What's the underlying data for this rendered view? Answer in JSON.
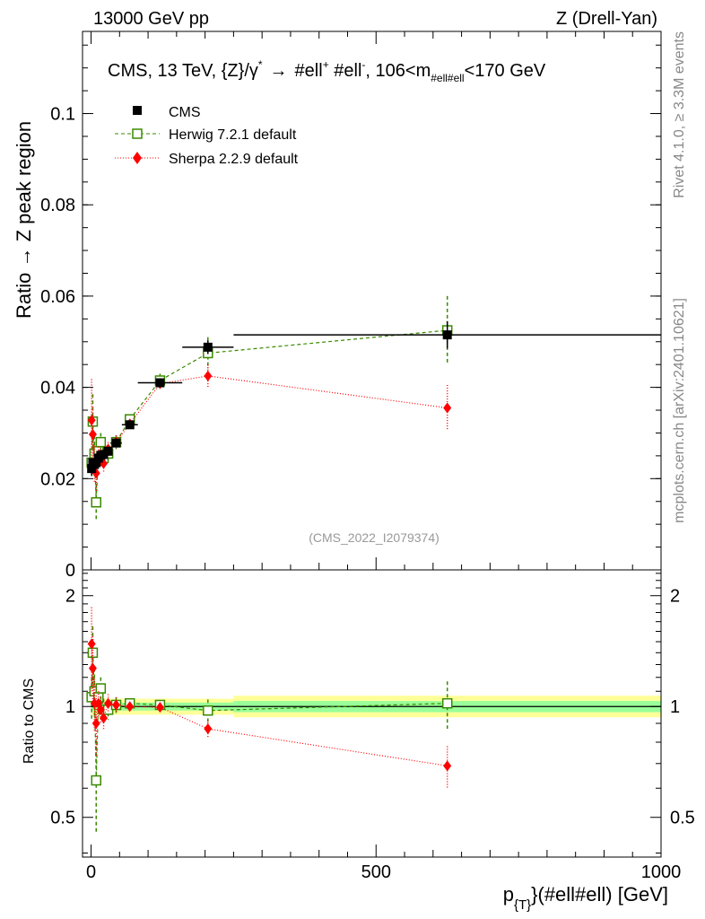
{
  "header": {
    "left": "13000 GeV pp",
    "right": "Z (Drell-Yan)"
  },
  "side_labels": {
    "rivet": "Rivet 4.1.0, ≥ 3.3M events",
    "mcplots": "mcplots.cern.ch [arXiv:2401.10621]"
  },
  "chart_data": [
    {
      "type": "scatter",
      "panel": "main",
      "title_parts": {
        "pre": "CMS, 13 TeV, {Z}/γ",
        "star": "*",
        "arrow": "→",
        "mid1": "#ell",
        "plus": "+",
        "mid2": " #ell",
        "minus": "-",
        "range": ", 106<m",
        "sub": "#ell#ell",
        "end": "<170 GeV"
      },
      "ylabel": "Ratio → Z peak region",
      "xlabel_parts": {
        "p": "p",
        "sub": "{T}",
        "rest": "}(#ell#ell) [GeV]"
      },
      "watermark": "(CMS_2022_I2079374)",
      "xlim": [
        -15,
        1000
      ],
      "ylim": [
        0,
        0.118
      ],
      "yticks": [
        0,
        0.02,
        0.04,
        0.06,
        0.08,
        0.1
      ],
      "ytick_labels": [
        "0",
        "0.02",
        "0.04",
        "0.06",
        "0.08",
        "0.1"
      ],
      "series": [
        {
          "name": "CMS",
          "color": "#000000",
          "marker": "square-filled",
          "x": [
            1,
            3,
            6,
            9,
            13,
            17,
            22,
            30,
            44,
            68,
            121,
            205,
            625
          ],
          "y": [
            0.0222,
            0.0235,
            0.0231,
            0.0235,
            0.0245,
            0.0251,
            0.0253,
            0.026,
            0.0278,
            0.0318,
            0.041,
            0.0488,
            0.0515
          ],
          "xerr": [
            1,
            1,
            2,
            1,
            3,
            1,
            4,
            4,
            10,
            14,
            39,
            45,
            375
          ],
          "yerr": [
            0.0015,
            0.001,
            0.001,
            0.001,
            0.001,
            0.001,
            0.001,
            0.001,
            0.001,
            0.0008,
            0.001,
            0.0015,
            0.003
          ]
        },
        {
          "name": "Herwig 7.2.1 default",
          "color": "#3a8a00",
          "marker": "square-open",
          "line": "dashed",
          "x": [
            1,
            3,
            6,
            9,
            13,
            17,
            22,
            30,
            44,
            68,
            121,
            205,
            625
          ],
          "y": [
            0.0235,
            0.0325,
            0.0255,
            0.0148,
            0.026,
            0.028,
            0.0245,
            0.0255,
            0.028,
            0.033,
            0.0415,
            0.0475,
            0.0525
          ],
          "yerr": [
            0.003,
            0.006,
            0.004,
            0.004,
            0.002,
            0.002,
            0.002,
            0.0015,
            0.0015,
            0.001,
            0.0015,
            0.0035,
            0.0075
          ]
        },
        {
          "name": "Sherpa 2.2.9 default",
          "color": "#ff0000",
          "marker": "diamond-filled",
          "line": "dotted",
          "x": [
            1,
            3,
            6,
            9,
            13,
            17,
            22,
            30,
            44,
            68,
            121,
            205,
            625
          ],
          "y": [
            0.0328,
            0.0297,
            0.0232,
            0.0212,
            0.025,
            0.0245,
            0.0233,
            0.0265,
            0.028,
            0.032,
            0.0408,
            0.0425,
            0.0355
          ],
          "yerr": [
            0.009,
            0.006,
            0.004,
            0.004,
            0.002,
            0.002,
            0.002,
            0.0015,
            0.0015,
            0.001,
            0.0012,
            0.0025,
            0.005
          ]
        }
      ]
    },
    {
      "type": "scatter",
      "panel": "ratio",
      "ylabel": "Ratio to CMS",
      "xlim": [
        -15,
        1000
      ],
      "ylim": [
        0.39,
        2.35
      ],
      "log_scale": true,
      "yticks": [
        0.5,
        1,
        2
      ],
      "ytick_labels": [
        "0.5",
        "1",
        "2"
      ],
      "xticks": [
        0,
        500,
        1000
      ],
      "xtick_labels": [
        "0",
        "500",
        "1000"
      ],
      "bands": [
        {
          "x0": 0,
          "x1": 250,
          "y0": 0.95,
          "y1": 1.05,
          "color": "#ffff99"
        },
        {
          "x0": 250,
          "x1": 1000,
          "y0": 0.935,
          "y1": 1.07,
          "color": "#ffff99"
        },
        {
          "x0": 0,
          "x1": 250,
          "y0": 0.975,
          "y1": 1.025,
          "color": "#99ff99"
        },
        {
          "x0": 250,
          "x1": 1000,
          "y0": 0.965,
          "y1": 1.035,
          "color": "#99ff99"
        }
      ],
      "series": [
        {
          "name": "Herwig 7.2.1 default",
          "color": "#3a8a00",
          "marker": "square-open",
          "line": "dashed",
          "x": [
            1,
            3,
            6,
            9,
            13,
            17,
            22,
            30,
            44,
            68,
            121,
            205,
            625
          ],
          "y": [
            1.06,
            1.4,
            1.1,
            0.63,
            1.06,
            1.12,
            0.98,
            0.98,
            1.01,
            1.02,
            1.01,
            0.975,
            1.02
          ],
          "yerr": [
            0.14,
            0.25,
            0.17,
            0.18,
            0.08,
            0.08,
            0.07,
            0.06,
            0.05,
            0.03,
            0.03,
            0.07,
            0.15
          ]
        },
        {
          "name": "Sherpa 2.2.9 default",
          "color": "#ff0000",
          "marker": "diamond-filled",
          "line": "dotted",
          "x": [
            1,
            3,
            6,
            9,
            13,
            17,
            22,
            30,
            44,
            68,
            121,
            205,
            625
          ],
          "y": [
            1.48,
            1.27,
            1.02,
            0.9,
            1.02,
            0.98,
            0.93,
            1.02,
            1.01,
            1.0,
            0.995,
            0.87,
            0.69
          ],
          "yerr": [
            0.38,
            0.28,
            0.17,
            0.17,
            0.08,
            0.08,
            0.07,
            0.06,
            0.05,
            0.03,
            0.03,
            0.05,
            0.09
          ]
        }
      ]
    }
  ]
}
